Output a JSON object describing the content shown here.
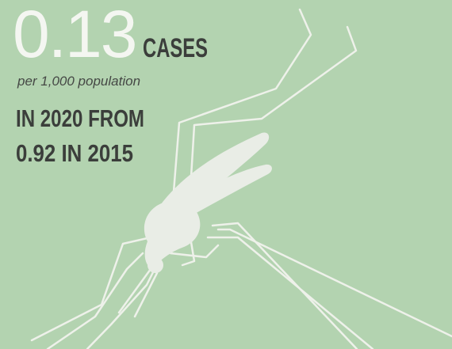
{
  "headline": {
    "value": "0.13",
    "unit": "CASES"
  },
  "subline": "per 1,000 population",
  "body": [
    "IN 2020 FROM",
    "0.92 IN 2015"
  ]
}
